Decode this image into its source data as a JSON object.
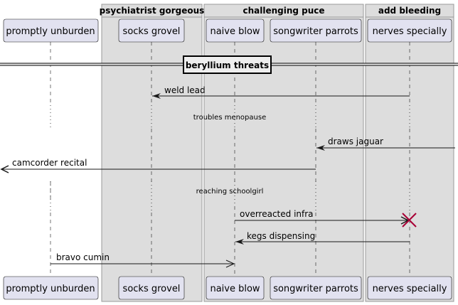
{
  "groups": [
    {
      "id": "g1",
      "title": "psychiatrist gorgeous"
    },
    {
      "id": "g2",
      "title": "challenging puce"
    },
    {
      "id": "g3",
      "title": "add bleeding"
    }
  ],
  "participants": [
    {
      "id": "p0",
      "label": "promptly unburden"
    },
    {
      "id": "p1",
      "label": "socks grovel"
    },
    {
      "id": "p2",
      "label": "naive blow"
    },
    {
      "id": "p3",
      "label": "songwriter parrots"
    },
    {
      "id": "p4",
      "label": "nerves specially"
    }
  ],
  "divider": {
    "label": "beryllium threats"
  },
  "delays": [
    {
      "id": "d1",
      "label": "troubles menopause"
    },
    {
      "id": "d2",
      "label": "reaching schoolgirl"
    }
  ],
  "messages": [
    {
      "id": "m1",
      "from": "p4",
      "to": "p1",
      "label": "weld lead",
      "arrow": "sync"
    },
    {
      "id": "m2",
      "from": "edge-right",
      "to": "p3",
      "label": "draws jaguar",
      "arrow": "sync"
    },
    {
      "id": "m3",
      "from": "p3",
      "to": "edge-left",
      "label": "camcorder recital",
      "arrow": "open"
    },
    {
      "id": "m4",
      "from": "p2",
      "to": "p4",
      "label": "overreacted infra",
      "arrow": "destroy"
    },
    {
      "id": "m5",
      "from": "p4",
      "to": "p2",
      "label": "kegs dispensing",
      "arrow": "sync"
    },
    {
      "id": "m6",
      "from": "p0",
      "to": "p2",
      "label": "bravo cumin",
      "arrow": "async"
    }
  ],
  "colors": {
    "group_fill": "#dddddd",
    "group_border": "#999999",
    "participant_fill": "#e2e2f0",
    "participant_border": "#181818",
    "lifeline": "#181818",
    "destroy": "#a80036"
  }
}
